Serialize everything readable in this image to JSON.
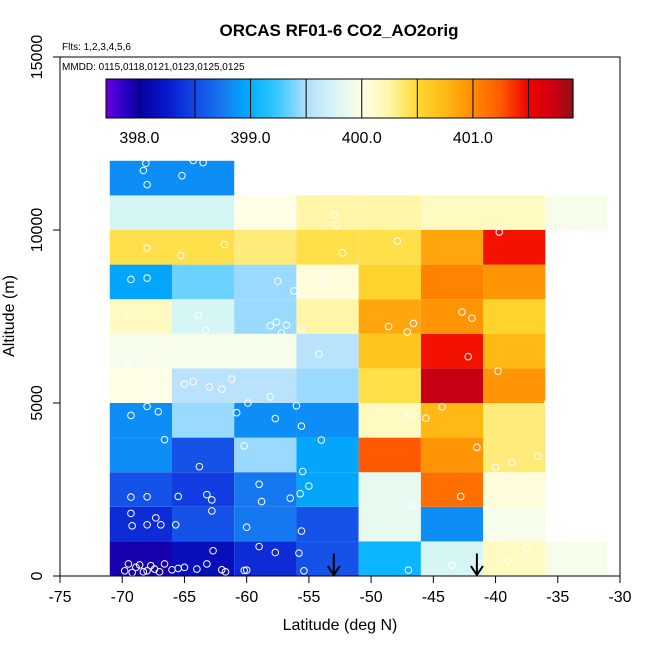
{
  "chart_data": {
    "type": "heatmap",
    "title": "ORCAS RF01-6 CO2_AO2orig",
    "flights_note": "Flts: 1,2,3,4,5,6",
    "dates_note": "MMDD: 0115,0118,0121,0123,0125,0125",
    "xlabel": "Latitude (deg N)",
    "ylabel": "Altitude (m)",
    "xlim": [
      -75,
      -30
    ],
    "ylim": [
      0,
      15000
    ],
    "x_ticks": [
      -75,
      -70,
      -65,
      -60,
      -55,
      -50,
      -45,
      -40,
      -35,
      -30
    ],
    "x_tick_labels": [
      "-75",
      "-70",
      "-65",
      "-60",
      "-55",
      "-50",
      "-45",
      "-40",
      "-35",
      "-30"
    ],
    "y_ticks": [
      0,
      5000,
      10000,
      15000
    ],
    "y_tick_labels": [
      "0",
      "5000",
      "10000",
      "15000"
    ],
    "colorbar": {
      "min": 397.7,
      "max": 401.9,
      "ticks": [
        398.0,
        399.0,
        400.0,
        401.0
      ],
      "tick_labels": [
        "398.0",
        "399.0",
        "400.0",
        "401.0"
      ],
      "boundaries": [
        397.7,
        398.0,
        398.5,
        399.0,
        399.5,
        400.0,
        400.5,
        401.0,
        401.5,
        401.9
      ]
    },
    "bins": {
      "lat_edges": [
        -71,
        -66,
        -61,
        -56,
        -51,
        -46,
        -41,
        -36,
        -31
      ],
      "alt_edges": [
        0,
        1000,
        2000,
        3000,
        4000,
        5000,
        6000,
        7000,
        8000,
        9000,
        10000,
        11000,
        12000
      ]
    },
    "cells": [
      [
        397.95,
        398.15,
        398.35,
        398.55,
        399.05,
        399.75,
        400.15,
        399.95
      ],
      [
        398.35,
        398.55,
        398.75,
        398.55,
        399.85,
        398.85,
        399.95,
        null
      ],
      [
        398.55,
        398.45,
        398.75,
        398.95,
        399.85,
        401.15,
        400.05,
        null
      ],
      [
        398.85,
        398.55,
        399.45,
        398.95,
        401.25,
        400.95,
        400.35,
        null
      ],
      [
        398.85,
        399.45,
        398.85,
        398.85,
        400.15,
        400.75,
        400.35,
        null
      ],
      [
        400.0,
        399.55,
        399.55,
        399.45,
        400.45,
        401.75,
        400.95,
        null
      ],
      [
        399.95,
        399.95,
        399.95,
        399.55,
        400.65,
        401.45,
        400.75,
        null
      ],
      [
        400.15,
        399.75,
        399.45,
        400.25,
        400.85,
        400.95,
        400.55,
        null
      ],
      [
        398.95,
        399.35,
        399.45,
        400.05,
        400.55,
        401.05,
        400.95,
        null
      ],
      [
        400.45,
        400.45,
        400.35,
        400.45,
        400.45,
        400.85,
        401.45,
        null
      ],
      [
        399.75,
        399.75,
        400.0,
        400.25,
        400.25,
        400.15,
        400.15,
        399.95
      ],
      [
        398.85,
        398.85,
        null,
        null,
        null,
        null,
        null,
        null
      ]
    ],
    "samples": [
      [
        -69.8,
        150
      ],
      [
        -69.5,
        350
      ],
      [
        -69.2,
        100
      ],
      [
        -68.9,
        250
      ],
      [
        -68.6,
        320
      ],
      [
        -68.3,
        120
      ],
      [
        -68.0,
        150
      ],
      [
        -67.7,
        300
      ],
      [
        -67.4,
        200
      ],
      [
        -67.0,
        120
      ],
      [
        -66.6,
        350
      ],
      [
        -66.0,
        180
      ],
      [
        -65.5,
        220
      ],
      [
        -65.0,
        250
      ],
      [
        -64.0,
        200
      ],
      [
        -63.2,
        350
      ],
      [
        -62.7,
        730
      ],
      [
        -62.0,
        180
      ],
      [
        -61.7,
        120
      ],
      [
        -60.2,
        160
      ],
      [
        -60.0,
        170
      ],
      [
        -59.0,
        850
      ],
      [
        -57.7,
        680
      ],
      [
        -55.8,
        660
      ],
      [
        -55.4,
        150
      ],
      [
        -47.0,
        170
      ],
      [
        -43.5,
        310
      ],
      [
        -41.2,
        350
      ],
      [
        -40.0,
        1120
      ],
      [
        -39.0,
        450
      ],
      [
        -69.3,
        1810
      ],
      [
        -69.2,
        1450
      ],
      [
        -68.0,
        1480
      ],
      [
        -67.3,
        1680
      ],
      [
        -66.9,
        1480
      ],
      [
        -65.7,
        1480
      ],
      [
        -62.8,
        1880
      ],
      [
        -60.0,
        1410
      ],
      [
        -55.6,
        1300
      ],
      [
        -46.8,
        2040
      ],
      [
        -42.8,
        2300
      ],
      [
        -37.5,
        810
      ],
      [
        -69.3,
        2280
      ],
      [
        -68.0,
        2290
      ],
      [
        -65.5,
        2300
      ],
      [
        -63.2,
        2350
      ],
      [
        -62.8,
        2200
      ],
      [
        -59.0,
        2650
      ],
      [
        -58.8,
        2150
      ],
      [
        -56.5,
        2250
      ],
      [
        -55.7,
        2380
      ],
      [
        -55.0,
        2600
      ],
      [
        -40.7,
        1220
      ],
      [
        -66.6,
        3940
      ],
      [
        -63.8,
        3160
      ],
      [
        -60.2,
        3760
      ],
      [
        -55.5,
        3020
      ],
      [
        -54.0,
        3930
      ],
      [
        -41.5,
        3720
      ],
      [
        -38.7,
        3280
      ],
      [
        -36.6,
        3460
      ],
      [
        -69.3,
        4640
      ],
      [
        -68.0,
        4900
      ],
      [
        -67.1,
        4750
      ],
      [
        -60.8,
        4720
      ],
      [
        -59.9,
        5000
      ],
      [
        -57.7,
        4550
      ],
      [
        -56.0,
        4920
      ],
      [
        -55.6,
        4330
      ],
      [
        -46.9,
        4640
      ],
      [
        -45.6,
        4560
      ],
      [
        -44.3,
        4890
      ],
      [
        -40.0,
        3140
      ],
      [
        -35.8,
        5000
      ],
      [
        -67.9,
        5510
      ],
      [
        -65.0,
        5550
      ],
      [
        -64.3,
        5620
      ],
      [
        -63.0,
        5460
      ],
      [
        -62.0,
        5400
      ],
      [
        -61.2,
        5690
      ],
      [
        -58.1,
        5180
      ],
      [
        -54.2,
        6410
      ],
      [
        -39.8,
        5920
      ],
      [
        -69.5,
        6140
      ],
      [
        -68.0,
        6160
      ],
      [
        -66.0,
        6610
      ],
      [
        -42.2,
        6340
      ],
      [
        -46.6,
        7300
      ],
      [
        -47.1,
        7050
      ],
      [
        -69.5,
        7620
      ],
      [
        -63.9,
        7540
      ],
      [
        -63.3,
        7100
      ],
      [
        -58.1,
        7230
      ],
      [
        -57.6,
        7340
      ],
      [
        -57.2,
        7030
      ],
      [
        -56.8,
        7250
      ],
      [
        -55.6,
        7140
      ],
      [
        -48.6,
        7210
      ],
      [
        -42.7,
        7630
      ],
      [
        -41.9,
        7450
      ],
      [
        -35.0,
        7490
      ],
      [
        -69.3,
        8570
      ],
      [
        -68.0,
        8610
      ],
      [
        -57.5,
        8520
      ],
      [
        -56.2,
        8240
      ],
      [
        -53.8,
        8560
      ],
      [
        -68.0,
        9480
      ],
      [
        -65.3,
        9260
      ],
      [
        -61.8,
        9580
      ],
      [
        -52.3,
        9340
      ],
      [
        -47.9,
        9680
      ],
      [
        -39.7,
        9940
      ],
      [
        -53.0,
        10440
      ],
      [
        -52.8,
        10140
      ],
      [
        -33.6,
        10120
      ],
      [
        -68.0,
        11310
      ],
      [
        -68.3,
        11720
      ],
      [
        -68.1,
        11930
      ],
      [
        -65.2,
        11570
      ],
      [
        -64.3,
        12010
      ],
      [
        -63.5,
        11950
      ]
    ],
    "markers": [
      {
        "lat": -53.0,
        "alt_top": 650,
        "alt_bottom": 0
      },
      {
        "lat": -41.5,
        "alt_top": 650,
        "alt_bottom": 0
      }
    ]
  }
}
